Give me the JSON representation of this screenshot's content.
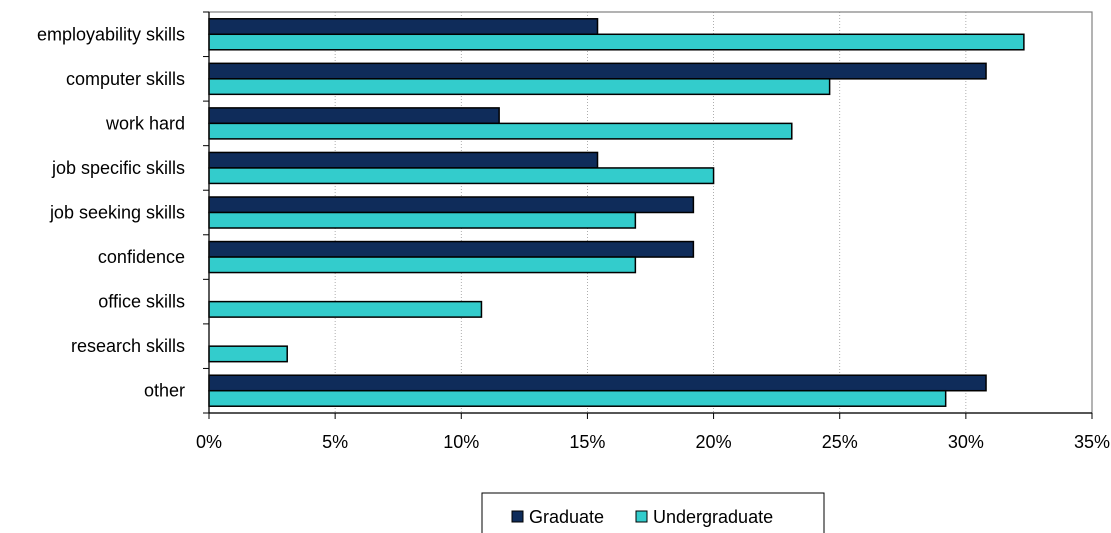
{
  "chart_data": {
    "type": "bar",
    "orientation": "horizontal",
    "categories": [
      "employability skills",
      "computer skills",
      "work hard",
      "job specific skills",
      "job seeking skills",
      "confidence",
      "office skills",
      "research skills",
      "other"
    ],
    "series": [
      {
        "name": "Graduate",
        "color": "#0f2c5a",
        "values": [
          15.4,
          30.8,
          11.5,
          15.4,
          19.2,
          19.2,
          0,
          0,
          30.8
        ]
      },
      {
        "name": "Undergraduate",
        "color": "#33cccc",
        "values": [
          32.3,
          24.6,
          23.1,
          20.0,
          16.9,
          16.9,
          10.8,
          3.1,
          29.2
        ]
      }
    ],
    "xlim": [
      0,
      35
    ],
    "xticks": [
      "0%",
      "5%",
      "10%",
      "15%",
      "20%",
      "25%",
      "30%",
      "35%"
    ],
    "grid": "vertical dotted",
    "legend_position": "bottom-center",
    "title": "",
    "xlabel": "",
    "ylabel": ""
  }
}
